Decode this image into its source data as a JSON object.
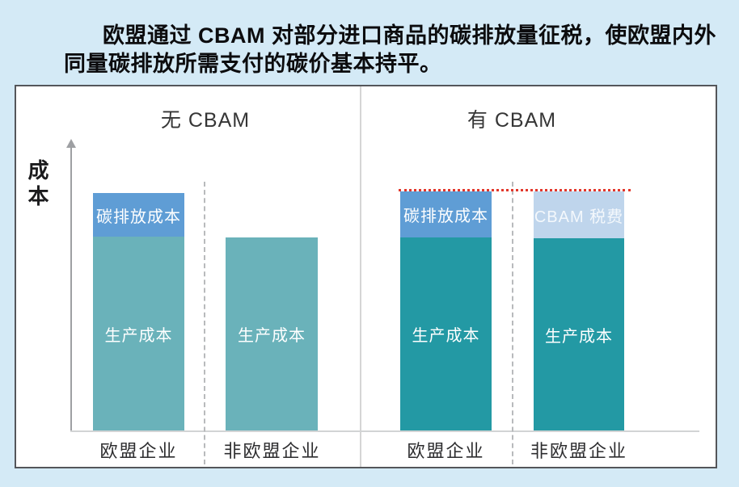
{
  "header": {
    "line1": "欧盟通过 CBAM 对部分进口商品的碳排放量征税，使欧盟内外",
    "line2": "同量碳排放所需支付的碳价基本持平。"
  },
  "icons": {
    "y_axis_arrow": "arrow-up"
  },
  "colors": {
    "page_background": "#d4eaf6",
    "chart_background": "#ffffff",
    "production_teal_no_cbam": "#6ab2ba",
    "production_teal_with_cbam": "#2399a4",
    "carbon_cost_blue": "#5f9dd5",
    "cbam_tax_light_blue": "#bfd5ec",
    "reference_line_red": "#e2372b"
  },
  "chart_data": {
    "type": "bar",
    "stacked": true,
    "grid": false,
    "legend": "labels drawn inside bar segments",
    "ylabel": "成本",
    "y_axis_ticks": "none (conceptual relative cost)",
    "panels": [
      {
        "title": "无 CBAM",
        "categories": [
          "欧盟企业",
          "非欧盟企业"
        ],
        "bars": [
          {
            "category": "欧盟企业",
            "segments": [
              {
                "label": "生产成本",
                "value": 81,
                "color": "#6ab2ba"
              },
              {
                "label": "碳排放成本",
                "value": 19,
                "color": "#5f9dd5"
              }
            ],
            "total": 100
          },
          {
            "category": "非欧盟企业",
            "segments": [
              {
                "label": "生产成本",
                "value": 81,
                "color": "#6ab2ba"
              }
            ],
            "total": 81
          }
        ]
      },
      {
        "title": "有 CBAM",
        "categories": [
          "欧盟企业",
          "非欧盟企业"
        ],
        "bars": [
          {
            "category": "欧盟企业",
            "segments": [
              {
                "label": "生产成本",
                "value": 81,
                "color": "#2399a4"
              },
              {
                "label": "碳排放成本",
                "value": 19,
                "color": "#5f9dd5"
              }
            ],
            "total": 100
          },
          {
            "category": "非欧盟企业",
            "segments": [
              {
                "label": "生产成本",
                "value": 81,
                "color": "#2399a4"
              },
              {
                "label": "CBAM 税费",
                "value": 19,
                "color": "#bfd5ec"
              }
            ],
            "total": 100
          }
        ],
        "reference_line": {
          "value": 100,
          "style": "dotted",
          "color": "#e2372b",
          "meaning": "欧盟内外总成本持平线"
        }
      }
    ]
  }
}
